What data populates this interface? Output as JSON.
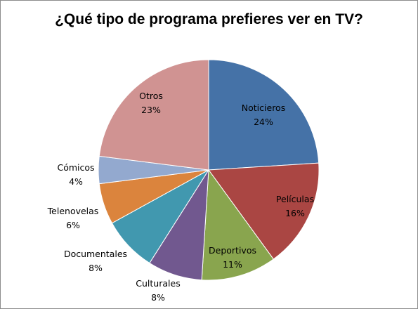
{
  "chart_data": {
    "type": "pie",
    "title": "¿Qué tipo de programa prefieres ver en TV?",
    "slices": [
      {
        "label": "Noticieros",
        "value": 24,
        "display": "24%",
        "color": "#4572a7"
      },
      {
        "label": "Películas",
        "value": 16,
        "display": "16%",
        "color": "#aa4643"
      },
      {
        "label": "Deportivos",
        "value": 11,
        "display": "11%",
        "color": "#89a54e"
      },
      {
        "label": "Culturales",
        "value": 8,
        "display": "8%",
        "color": "#71588f"
      },
      {
        "label": "Documentales",
        "value": 8,
        "display": "8%",
        "color": "#4198af"
      },
      {
        "label": "Telenovelas",
        "value": 6,
        "display": "6%",
        "color": "#db843d"
      },
      {
        "label": "Cómicos",
        "value": 4,
        "display": "4%",
        "color": "#93a9cf"
      },
      {
        "label": "Otros",
        "value": 23,
        "display": "23%",
        "color": "#d09392"
      }
    ],
    "legend": "none"
  }
}
